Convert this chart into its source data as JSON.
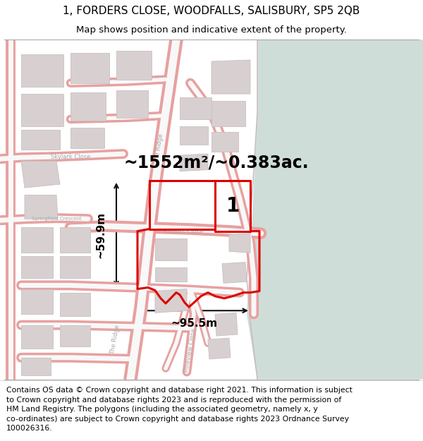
{
  "title_line1": "1, FORDERS CLOSE, WOODFALLS, SALISBURY, SP5 2QB",
  "title_line2": "Map shows position and indicative extent of the property.",
  "footer_text": "Contains OS data © Crown copyright and database right 2021. This information is subject\nto Crown copyright and database rights 2023 and is reproduced with the permission of\nHM Land Registry. The polygons (including the associated geometry, namely x, y\nco-ordinates) are subject to Crown copyright and database rights 2023 Ordnance Survey\n100026316.",
  "bg_map_color": "#f7f0f0",
  "bg_green_color": "#cfddd8",
  "road_stroke": "#e8a0a0",
  "road_fill": "#f8f8f8",
  "building_fill": "#d8d0d0",
  "building_edge": "#c8c0c0",
  "property_color": "#dd0000",
  "text_color": "#000000",
  "dim_color": "#111111",
  "road_label_color": "#aaaaaa",
  "area_text": "~1552m²/~0.383ac.",
  "width_text": "~95.5m",
  "height_text": "~59.9m",
  "label_text": "1",
  "title_fontsize": 11,
  "subtitle_fontsize": 9.5,
  "footer_fontsize": 7.8,
  "area_fontsize": 17,
  "dim_fontsize": 11,
  "label_fontsize": 20,
  "road_label_fontsize": 6
}
